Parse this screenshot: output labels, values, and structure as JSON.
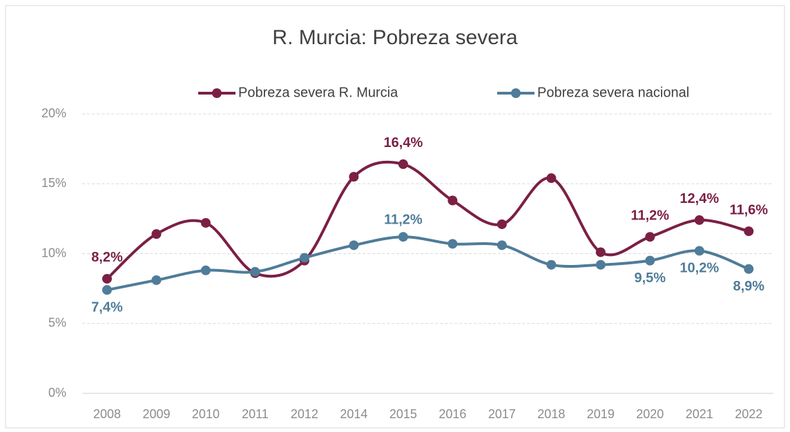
{
  "chart_data": {
    "type": "line",
    "title": "R. Murcia: Pobreza severa",
    "categories": [
      "2008",
      "2009",
      "2010",
      "2011",
      "2012",
      "2014",
      "2015",
      "2016",
      "2017",
      "2018",
      "2019",
      "2020",
      "2021",
      "2022"
    ],
    "series": [
      {
        "name": "Pobreza severa R. Murcia",
        "color": "#7b1f45",
        "values": [
          8.2,
          11.4,
          12.2,
          8.6,
          9.5,
          15.5,
          16.4,
          13.8,
          12.1,
          15.4,
          10.1,
          11.2,
          12.4,
          11.6
        ],
        "value_labels": [
          "8,2%",
          null,
          null,
          null,
          null,
          null,
          "16,4%",
          null,
          null,
          null,
          null,
          "11,2%",
          "12,4%",
          "11,6%"
        ]
      },
      {
        "name": "Pobreza severa nacional",
        "color": "#4f7c99",
        "values": [
          7.4,
          8.1,
          8.8,
          8.7,
          9.7,
          10.6,
          11.2,
          10.7,
          10.6,
          9.2,
          9.2,
          9.5,
          10.2,
          8.9
        ],
        "value_labels": [
          "7,4%",
          null,
          null,
          null,
          null,
          null,
          "11,2%",
          null,
          null,
          null,
          null,
          "9,5%",
          "10,2%",
          "8,9%"
        ]
      }
    ],
    "ylim": [
      0,
      20
    ],
    "yticks": [
      {
        "value": 0,
        "label": "0%"
      },
      {
        "value": 5,
        "label": "5%"
      },
      {
        "value": 10,
        "label": "10%"
      },
      {
        "value": 15,
        "label": "15%"
      },
      {
        "value": 20,
        "label": "20%"
      }
    ],
    "grid": true,
    "legend": "top"
  }
}
